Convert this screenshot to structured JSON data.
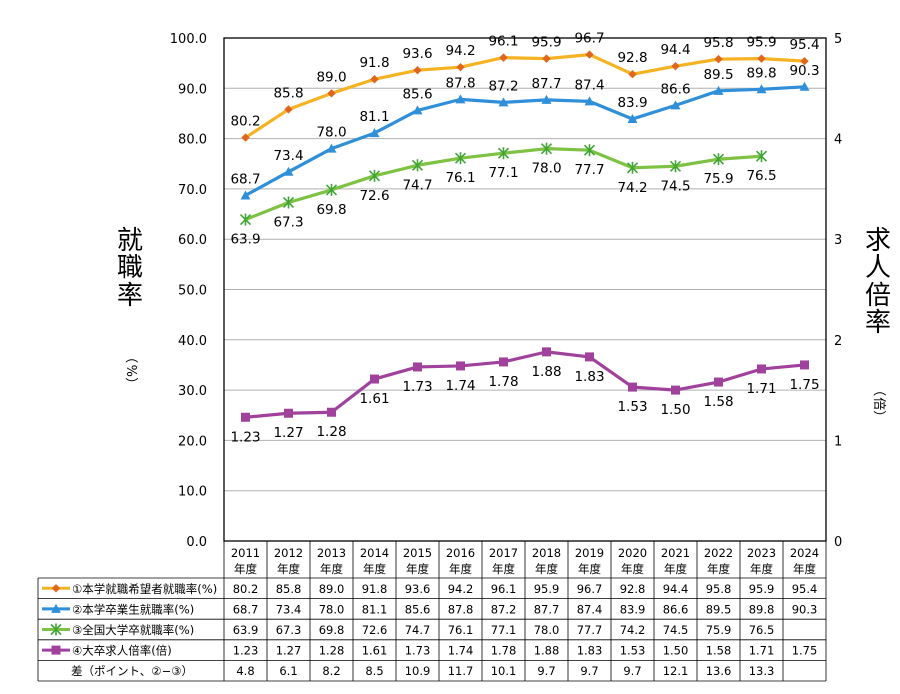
{
  "chart_data": {
    "type": "line",
    "categories": [
      "2011年度",
      "2012年度",
      "2013年度",
      "2014年度",
      "2015年度",
      "2016年度",
      "2017年度",
      "2018年度",
      "2019年度",
      "2020年度",
      "2021年度",
      "2022年度",
      "2023年度",
      "2024年度"
    ],
    "category_labels": [
      {
        "year": "2011",
        "suffix": "年度"
      },
      {
        "year": "2012",
        "suffix": "年度"
      },
      {
        "year": "2013",
        "suffix": "年度"
      },
      {
        "year": "2014",
        "suffix": "年度"
      },
      {
        "year": "2015",
        "suffix": "年度"
      },
      {
        "year": "2016",
        "suffix": "年度"
      },
      {
        "year": "2017",
        "suffix": "年度"
      },
      {
        "year": "2018",
        "suffix": "年度"
      },
      {
        "year": "2019",
        "suffix": "年度"
      },
      {
        "year": "2020",
        "suffix": "年度"
      },
      {
        "year": "2021",
        "suffix": "年度"
      },
      {
        "year": "2022",
        "suffix": "年度"
      },
      {
        "year": "2023",
        "suffix": "年度"
      },
      {
        "year": "2024",
        "suffix": "年度"
      }
    ],
    "y_left": {
      "label": "就職率",
      "unit": "（%）",
      "ylim": [
        0,
        100
      ],
      "ticks": [
        "0.0",
        "10.0",
        "20.0",
        "30.0",
        "40.0",
        "50.0",
        "60.0",
        "70.0",
        "80.0",
        "90.0",
        "100.0"
      ]
    },
    "y_right": {
      "label": "求人倍率",
      "unit": "（倍）",
      "ylim": [
        0,
        5
      ],
      "ticks": [
        "0",
        "1",
        "2",
        "3",
        "4",
        "5"
      ]
    },
    "series": [
      {
        "name": "①本学就職希望者就職率(%)",
        "axis": "left",
        "color": "#F5B324",
        "marker": "diamond",
        "marker_color": "#E0661E",
        "values": [
          80.2,
          85.8,
          89.0,
          91.8,
          93.6,
          94.2,
          96.1,
          95.9,
          96.7,
          92.8,
          94.4,
          95.8,
          95.9,
          95.4
        ],
        "labels": [
          "80.2",
          "85.8",
          "89.0",
          "91.8",
          "93.6",
          "94.2",
          "96.1",
          "95.9",
          "96.7",
          "92.8",
          "94.4",
          "95.8",
          "95.9",
          "95.4"
        ]
      },
      {
        "name": "②本学卒業生就職率(%)",
        "axis": "left",
        "color": "#2F8FD8",
        "marker": "triangle",
        "marker_color": "#2F8FD8",
        "values": [
          68.7,
          73.4,
          78.0,
          81.1,
          85.6,
          87.8,
          87.2,
          87.7,
          87.4,
          83.9,
          86.6,
          89.5,
          89.8,
          90.3
        ],
        "labels": [
          "68.7",
          "73.4",
          "78.0",
          "81.1",
          "85.6",
          "87.8",
          "87.2",
          "87.7",
          "87.4",
          "83.9",
          "86.6",
          "89.5",
          "89.8",
          "90.3"
        ]
      },
      {
        "name": "③全国大学卒就職率(%)",
        "axis": "left",
        "color": "#7DC242",
        "marker": "star",
        "marker_color": "#3FA535",
        "values": [
          63.9,
          67.3,
          69.8,
          72.6,
          74.7,
          76.1,
          77.1,
          78.0,
          77.7,
          74.2,
          74.5,
          75.9,
          76.5,
          null
        ],
        "labels": [
          "63.9",
          "67.3",
          "69.8",
          "72.6",
          "74.7",
          "76.1",
          "77.1",
          "78.0",
          "77.7",
          "74.2",
          "74.5",
          "75.9",
          "76.5",
          ""
        ]
      },
      {
        "name": "④大卒求人倍率(倍)",
        "axis": "right",
        "color": "#A0429C",
        "marker": "square",
        "marker_color": "#A0429C",
        "values": [
          1.23,
          1.27,
          1.28,
          1.61,
          1.73,
          1.74,
          1.78,
          1.88,
          1.83,
          1.53,
          1.5,
          1.58,
          1.71,
          1.75
        ],
        "labels": [
          "1.23",
          "1.27",
          "1.28",
          "1.61",
          "1.73",
          "1.74",
          "1.78",
          "1.88",
          "1.83",
          "1.53",
          "1.50",
          "1.58",
          "1.71",
          "1.75"
        ]
      }
    ],
    "table": {
      "extra_row": {
        "name": "差（ポイント、②−③）",
        "values": [
          "4.8",
          "6.1",
          "8.2",
          "8.5",
          "10.9",
          "11.7",
          "10.1",
          "9.7",
          "9.7",
          "9.7",
          "12.1",
          "13.6",
          "13.3",
          ""
        ]
      }
    },
    "grid": true
  }
}
